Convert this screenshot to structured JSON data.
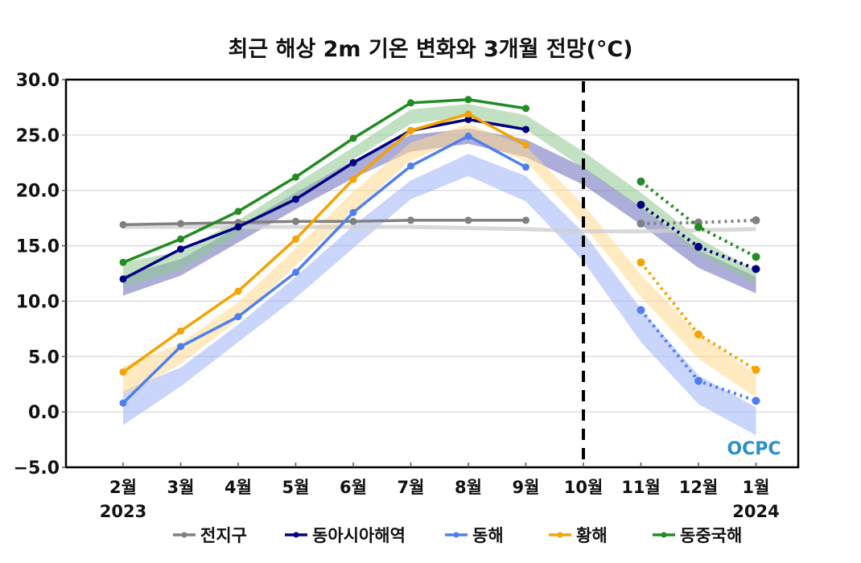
{
  "chart_data": {
    "type": "line",
    "title": "최근 해상 2m 기온 변화와 3개월 전망(°C)",
    "xlabel": "",
    "ylabel": "",
    "ylim": [
      -5.0,
      30.0
    ],
    "yticks": [
      "30.0",
      "25.0",
      "20.0",
      "15.0",
      "10.0",
      "5.0",
      "0.0",
      "−5.0"
    ],
    "ytick_values": [
      30,
      25,
      20,
      15,
      10,
      5,
      0,
      -5
    ],
    "grid": "horizontal",
    "categories": [
      "2월",
      "3월",
      "4월",
      "5월",
      "6월",
      "7월",
      "8월",
      "9월",
      "10월",
      "11월",
      "12월",
      "1월"
    ],
    "year_labels": [
      {
        "category_index": 0,
        "label": "2023"
      },
      {
        "category_index": 11,
        "label": "2024"
      }
    ],
    "forecast_divider_index": 8,
    "observed_range": [
      0,
      7
    ],
    "forecast_range": [
      9,
      11
    ],
    "series": [
      {
        "name": "전지구",
        "color": "#808080",
        "observed": [
          16.9,
          17.0,
          17.1,
          17.2,
          17.2,
          17.3,
          17.3,
          17.3,
          null,
          null,
          null,
          null
        ],
        "forecast": [
          null,
          null,
          null,
          null,
          null,
          null,
          null,
          null,
          null,
          17.0,
          17.1,
          17.3
        ],
        "climatology_line": [
          16.7,
          16.7,
          16.7,
          16.7,
          16.7,
          16.7,
          16.6,
          16.5,
          16.3,
          16.3,
          16.4,
          16.5
        ],
        "band_color": "#d0d0d0"
      },
      {
        "name": "동아시아해역",
        "color": "#000080",
        "observed": [
          12.0,
          14.7,
          16.7,
          19.2,
          22.5,
          25.4,
          26.4,
          25.5,
          null,
          null,
          null,
          null
        ],
        "forecast": [
          null,
          null,
          null,
          null,
          null,
          null,
          null,
          null,
          null,
          18.7,
          14.9,
          12.9
        ],
        "band_upper": [
          12.3,
          13.8,
          16.7,
          19.8,
          22.7,
          25.0,
          25.6,
          24.6,
          22.1,
          18.5,
          14.6,
          12.2
        ],
        "band_lower": [
          10.5,
          12.3,
          15.3,
          18.3,
          21.1,
          23.5,
          24.2,
          23.0,
          20.5,
          16.9,
          13.0,
          10.7
        ],
        "band_color": "#6a6aba"
      },
      {
        "name": "동해",
        "color": "#4f7fef",
        "observed": [
          0.8,
          5.9,
          8.6,
          12.6,
          18.0,
          22.2,
          24.9,
          22.1,
          null,
          null,
          null,
          null
        ],
        "forecast": [
          null,
          null,
          null,
          null,
          null,
          null,
          null,
          null,
          null,
          9.2,
          2.8,
          1.0
        ],
        "band_upper": [
          1.9,
          4.0,
          7.9,
          12.2,
          16.8,
          20.9,
          23.3,
          21.3,
          16.2,
          9.3,
          3.3,
          0.4
        ],
        "band_lower": [
          -1.2,
          2.3,
          6.3,
          10.3,
          14.8,
          19.2,
          21.3,
          19.0,
          13.6,
          6.3,
          0.7,
          -2.1
        ],
        "band_color": "#9fb3f7"
      },
      {
        "name": "황해",
        "color": "#f5a300",
        "observed": [
          3.6,
          7.3,
          10.9,
          15.6,
          21.0,
          25.4,
          26.9,
          24.1,
          null,
          null,
          null,
          null
        ],
        "forecast": [
          null,
          null,
          null,
          null,
          null,
          null,
          null,
          null,
          null,
          13.5,
          7.0,
          3.8
        ],
        "band_upper": [
          4.1,
          6.2,
          9.9,
          14.8,
          19.9,
          24.3,
          26.0,
          24.0,
          18.7,
          12.4,
          7.0,
          3.4
        ],
        "band_lower": [
          1.5,
          4.3,
          8.3,
          13.2,
          18.1,
          22.7,
          24.8,
          22.6,
          16.9,
          10.4,
          4.8,
          1.3
        ],
        "band_color": "#ffd98f"
      },
      {
        "name": "동중국해",
        "color": "#228b22",
        "observed": [
          13.5,
          15.6,
          18.1,
          21.2,
          24.7,
          27.9,
          28.2,
          27.4,
          null,
          null,
          null,
          null
        ],
        "forecast": [
          null,
          null,
          null,
          null,
          null,
          null,
          null,
          null,
          null,
          20.8,
          16.7,
          14.0
        ],
        "band_upper": [
          13.5,
          14.5,
          17.3,
          20.6,
          23.9,
          27.3,
          27.8,
          26.8,
          23.5,
          19.8,
          15.7,
          12.7
        ],
        "band_lower": [
          11.3,
          12.8,
          16.0,
          19.4,
          22.8,
          26.0,
          26.7,
          25.5,
          22.0,
          18.4,
          14.3,
          11.5
        ],
        "band_color": "#8fc98f"
      }
    ],
    "legend": {
      "position": "bottom",
      "entries": [
        "전지구",
        "동아시아해역",
        "동해",
        "황해",
        "동중국해"
      ]
    },
    "logo": "OCPC"
  }
}
